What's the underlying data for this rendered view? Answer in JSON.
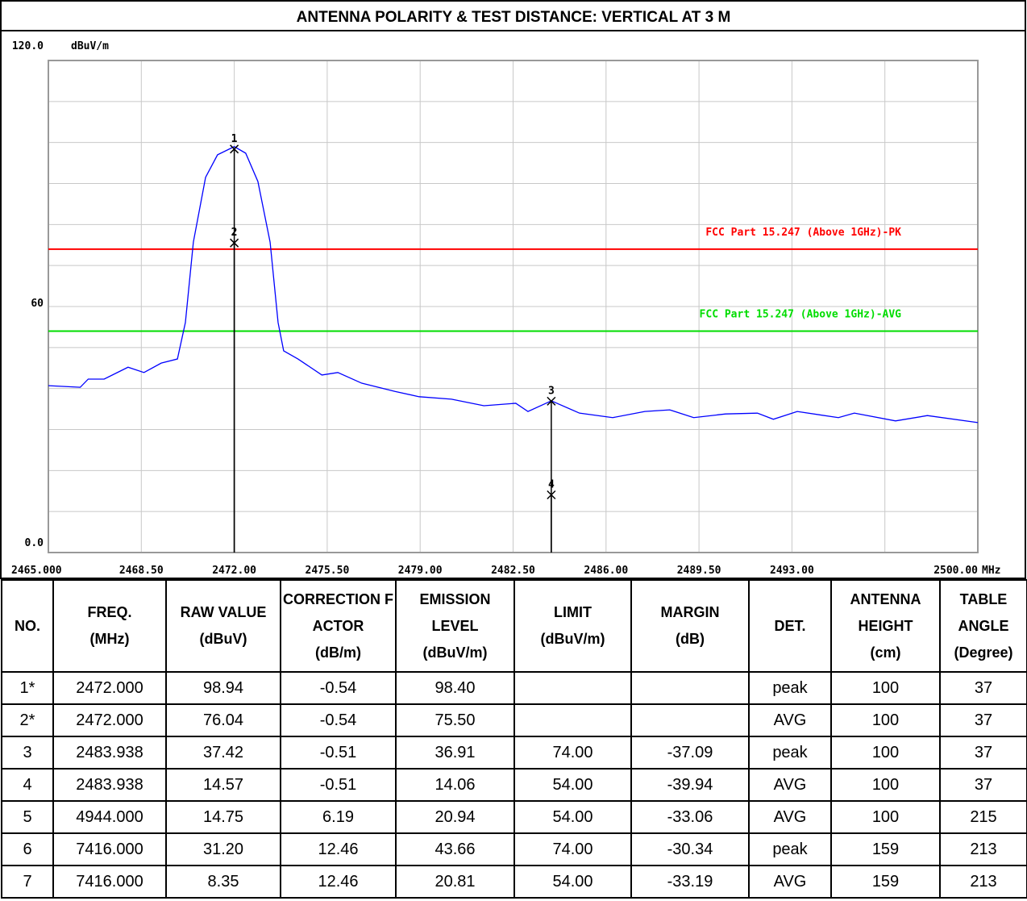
{
  "chart_data": {
    "type": "line",
    "title": "ANTENNA POLARITY & TEST DISTANCE: VERTICAL AT 3 M",
    "y_unit": "dBuV/m",
    "x_unit": "MHz",
    "xlim": [
      2465,
      2500
    ],
    "ylim": [
      0,
      120
    ],
    "xticks": [
      {
        "value": 2465,
        "label": "2465.000"
      },
      {
        "value": 2468.5,
        "label": "2468.50"
      },
      {
        "value": 2472,
        "label": "2472.00"
      },
      {
        "value": 2475.5,
        "label": "2475.50"
      },
      {
        "value": 2479,
        "label": "2479.00"
      },
      {
        "value": 2482.5,
        "label": "2482.50"
      },
      {
        "value": 2486,
        "label": "2486.00"
      },
      {
        "value": 2489.5,
        "label": "2489.50"
      },
      {
        "value": 2493,
        "label": "2493.00"
      },
      {
        "value": 2500,
        "label": "2500.00"
      }
    ],
    "yticks": [
      {
        "value": 120,
        "label": "120.0"
      },
      60,
      {
        "value": 0,
        "label": "0.0"
      }
    ],
    "xgrid": [
      2465,
      2468.5,
      2472,
      2475.5,
      2479,
      2482.5,
      2486,
      2489.5,
      2493,
      2496.5,
      2500
    ],
    "ygrid": [
      0,
      10,
      20,
      30,
      40,
      50,
      60,
      70,
      80,
      90,
      100,
      110,
      120
    ],
    "grid": true,
    "series": [
      {
        "color": "#0000ff",
        "x": [
          2465,
          2466.2,
          2466.5,
          2467.1,
          2468.0,
          2468.6,
          2469.25,
          2469.86,
          2470.16,
          2470.46,
          2470.92,
          2471.37,
          2472,
          2472.43,
          2472.89,
          2473.35,
          2473.65,
          2473.86,
          2474.4,
          2475.3,
          2475.9,
          2476.8,
          2478.05,
          2478.96,
          2480.18,
          2481.4,
          2482.6,
          2483.06,
          2483.94,
          2485.0,
          2486.25,
          2487.46,
          2488.4,
          2489.3,
          2490.5,
          2491.7,
          2492.3,
          2493.2,
          2494.75,
          2495.35,
          2496.9,
          2498.1,
          2500
        ],
        "values": [
          40.7,
          40.3,
          42.3,
          42.3,
          45.2,
          43.9,
          46.2,
          47.2,
          56.1,
          75.7,
          91.5,
          97.0,
          99.0,
          97.4,
          90.5,
          75.7,
          56.1,
          49.2,
          47.2,
          43.3,
          43.9,
          41.3,
          39.3,
          38.0,
          37.4,
          35.8,
          36.4,
          34.4,
          37.0,
          34.0,
          32.9,
          34.4,
          34.8,
          32.9,
          33.8,
          34.0,
          32.5,
          34.4,
          32.9,
          34.0,
          32.1,
          33.4,
          31.7
        ]
      }
    ],
    "limits": [
      {
        "name": "FCC Part 15.247 (Above 1GHz)-PK",
        "value": 74,
        "color": "#ff0000"
      },
      {
        "name": "FCC Part 15.247 (Above 1GHz)-AVG",
        "value": 54,
        "color": "#00dd00"
      }
    ],
    "markers": [
      {
        "label": "1",
        "x": 2472,
        "y": 98.4
      },
      {
        "label": "2",
        "x": 2472,
        "y": 75.5
      },
      {
        "label": "3",
        "x": 2483.938,
        "y": 36.91
      },
      {
        "label": "4",
        "x": 2483.938,
        "y": 14.06
      }
    ]
  },
  "table": {
    "headers": [
      [
        "NO."
      ],
      [
        "FREQ.",
        "(MHz)"
      ],
      [
        "RAW VALUE",
        "(dBuV)"
      ],
      [
        "CORRECTION FACTOR",
        "(dB/m)"
      ],
      [
        "EMISSION",
        "LEVEL",
        "(dBuV/m)"
      ],
      [
        "LIMIT",
        "(dBuV/m)"
      ],
      [
        "MARGIN",
        "(dB)"
      ],
      [
        "DET."
      ],
      [
        "ANTENNA",
        "HEIGHT",
        "(cm)"
      ],
      [
        "TABLE",
        "ANGLE",
        "(Degree)"
      ]
    ],
    "rows": [
      [
        "1*",
        "2472.000",
        "98.94",
        "-0.54",
        "98.40",
        null,
        null,
        "peak",
        "100",
        "37"
      ],
      [
        "2*",
        "2472.000",
        "76.04",
        "-0.54",
        "75.50",
        null,
        null,
        "AVG",
        "100",
        "37"
      ],
      [
        "3",
        "2483.938",
        "37.42",
        "-0.51",
        "36.91",
        "74.00",
        "-37.09",
        "peak",
        "100",
        "37"
      ],
      [
        "4",
        "2483.938",
        "14.57",
        "-0.51",
        "14.06",
        "54.00",
        "-39.94",
        "AVG",
        "100",
        "37"
      ],
      [
        "5",
        "4944.000",
        "14.75",
        "6.19",
        "20.94",
        "54.00",
        "-33.06",
        "AVG",
        "100",
        "215"
      ],
      [
        "6",
        "7416.000",
        "31.20",
        "12.46",
        "43.66",
        "74.00",
        "-30.34",
        "peak",
        "159",
        "213"
      ],
      [
        "7",
        "7416.000",
        "8.35",
        "12.46",
        "20.81",
        "54.00",
        "-33.19",
        "AVG",
        "159",
        "213"
      ]
    ]
  }
}
